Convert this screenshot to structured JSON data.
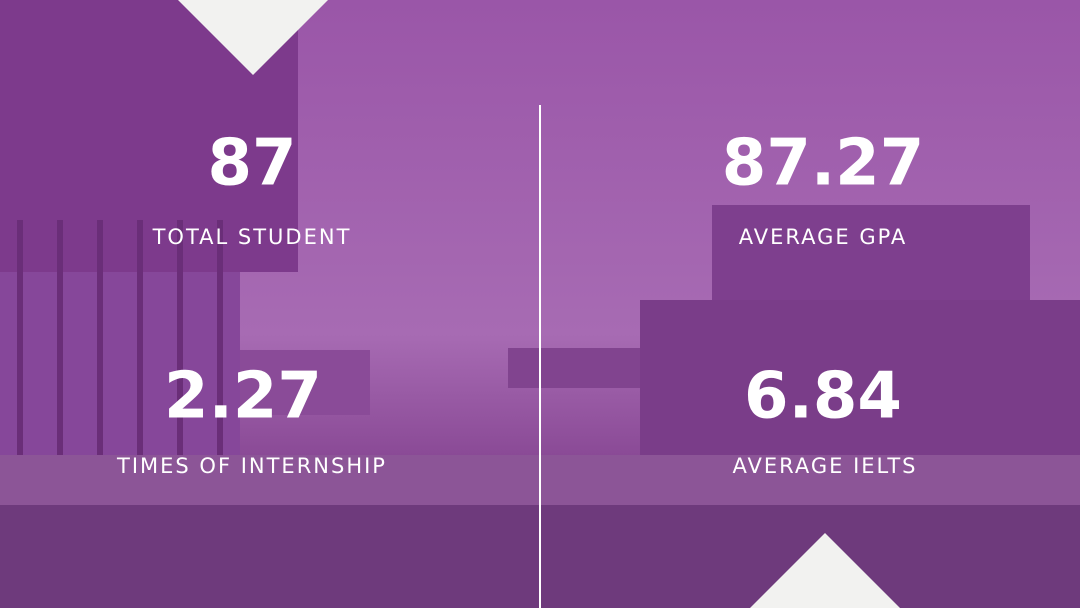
{
  "stats": [
    {
      "value": 87,
      "label": "TOTAL STUDENT"
    },
    {
      "value": 87.27,
      "label": "AVERAGE GPA"
    },
    {
      "value": 2.27,
      "label": "TIMES OF INTERNSHIP"
    },
    {
      "value": 6.84,
      "label": "AVERAGE IELTS"
    }
  ]
}
